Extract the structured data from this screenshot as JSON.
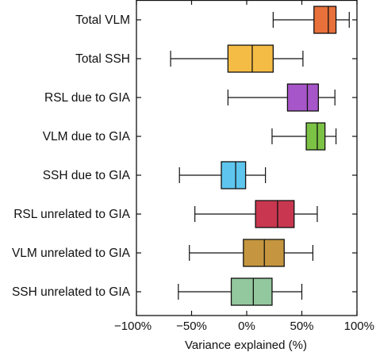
{
  "chart_data": {
    "type": "box",
    "title": "",
    "xlabel": "Variance explained (%)",
    "ylabel": "",
    "xlim": [
      -100,
      100
    ],
    "x_ticks": [
      {
        "value": -100,
        "label": "−100%"
      },
      {
        "value": -50,
        "label": "−50%"
      },
      {
        "value": 0,
        "label": "0%"
      },
      {
        "value": 50,
        "label": "50%"
      },
      {
        "value": 100,
        "label": "100%"
      }
    ],
    "grid": false,
    "legend": "none",
    "series": [
      {
        "label": "Total VLM",
        "color": "#E8703A",
        "whisker_low": 24,
        "q1": 61,
        "median": 74,
        "q3": 81,
        "whisker_high": 93
      },
      {
        "label": "Total SSH",
        "color": "#F5BC45",
        "whisker_low": -69,
        "q1": -17,
        "median": 5,
        "q3": 24,
        "whisker_high": 51
      },
      {
        "label": "RSL due to GIA",
        "color": "#A656C8",
        "whisker_low": -17,
        "q1": 37,
        "median": 55,
        "q3": 65,
        "whisker_high": 80
      },
      {
        "label": "VLM due to GIA",
        "color": "#7CC244",
        "whisker_low": 23,
        "q1": 54,
        "median": 64,
        "q3": 71,
        "whisker_high": 81
      },
      {
        "label": "SSH due to GIA",
        "color": "#5EC6EE",
        "whisker_low": -61,
        "q1": -23,
        "median": -10,
        "q3": -1,
        "whisker_high": 17
      },
      {
        "label": "RSL unrelated to GIA",
        "color": "#C8374F",
        "whisker_low": -47,
        "q1": 8,
        "median": 28,
        "q3": 43,
        "whisker_high": 64
      },
      {
        "label": "VLM unrelated to GIA",
        "color": "#C5963F",
        "whisker_low": -52,
        "q1": -3,
        "median": 16,
        "q3": 34,
        "whisker_high": 60
      },
      {
        "label": "SSH unrelated to GIA",
        "color": "#93C79D",
        "whisker_low": -62,
        "q1": -14,
        "median": 6,
        "q3": 23,
        "whisker_high": 50
      }
    ]
  }
}
